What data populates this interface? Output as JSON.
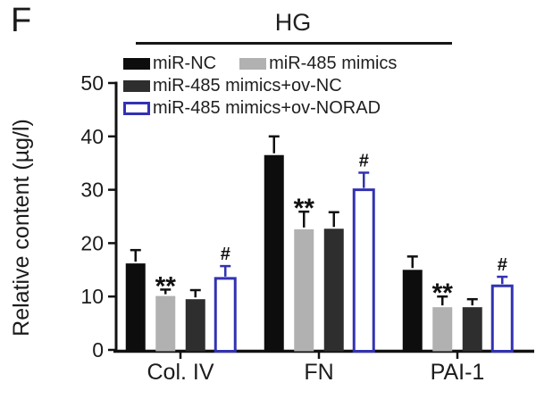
{
  "panel_label": "F",
  "treatment_header": "HG",
  "legend": [
    {
      "label": "miR-NC",
      "color": "#0d0d0d",
      "style": "fill"
    },
    {
      "label": "miR-485 mimics",
      "color": "#b1b1b1",
      "style": "fill"
    },
    {
      "label": "miR-485 mimics+ov-NC",
      "color": "#2e2e2e",
      "style": "fill"
    },
    {
      "label": "miR-485 mimics+ov-NORAD",
      "color": "#3232b4",
      "style": "outline"
    }
  ],
  "chart_data": {
    "type": "bar",
    "title": "HG",
    "categories": [
      "Col. IV",
      "FN",
      "PAI-1"
    ],
    "series": [
      {
        "name": "miR-NC",
        "style": "fill",
        "color": "#0d0d0d",
        "values": [
          16.2,
          36.5,
          15.0
        ],
        "errors": [
          2.5,
          3.5,
          2.5
        ],
        "annotations": [
          "",
          "",
          ""
        ]
      },
      {
        "name": "miR-485 mimics",
        "style": "fill",
        "color": "#b1b1b1",
        "values": [
          10.1,
          22.6,
          8.0
        ],
        "errors": [
          1.2,
          3.3,
          2.0
        ],
        "annotations": [
          "**",
          "**",
          "**"
        ]
      },
      {
        "name": "miR-485 mimics+ov-NC",
        "style": "fill",
        "color": "#2e2e2e",
        "values": [
          9.5,
          22.7,
          8.0
        ],
        "errors": [
          1.7,
          3.1,
          1.5
        ],
        "annotations": [
          "",
          "",
          ""
        ]
      },
      {
        "name": "miR-485 mimics+ov-NORAD",
        "style": "outline",
        "color": "#3232b4",
        "values": [
          13.4,
          30.0,
          12.0
        ],
        "errors": [
          2.3,
          3.2,
          1.7
        ],
        "annotations": [
          "#",
          "#",
          "#"
        ]
      }
    ],
    "xlabel": "",
    "ylabel": "Relative content (µg/l)",
    "ylim": [
      0,
      50
    ],
    "yticks": [
      0,
      10,
      20,
      30,
      40,
      50
    ],
    "grid": false,
    "legend_position": "top",
    "annotation_color": "#111111",
    "axis_color": "#111111"
  }
}
